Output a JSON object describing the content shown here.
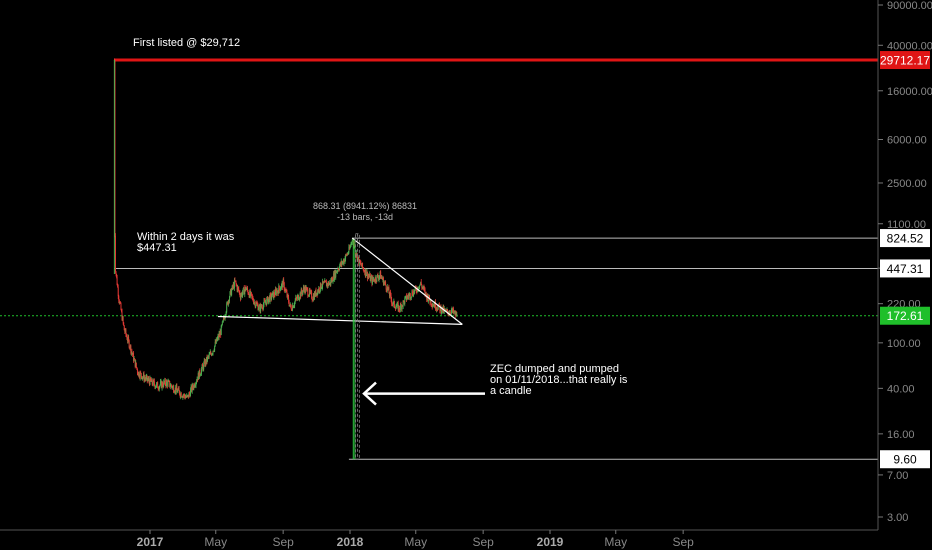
{
  "chart_data": {
    "type": "candlestick",
    "y_scale": "log",
    "ylim": [
      2.6,
      120000
    ],
    "x_ticks": [
      "2017",
      "May",
      "Sep",
      "2018",
      "May",
      "Sep",
      "2019",
      "May",
      "Sep"
    ],
    "x_tick_dates": [
      "2017-01-01",
      "2017-05-01",
      "2017-09-01",
      "2018-01-01",
      "2018-05-01",
      "2018-09-01",
      "2019-01-01",
      "2019-05-01",
      "2019-09-01"
    ],
    "y_ticks": [
      "90000.00",
      "40000.00",
      "16000.00",
      "6000.00",
      "2500.00",
      "1100.00",
      "450.00",
      "220.00",
      "100.00",
      "40.00",
      "16.00",
      "7.00",
      "3.00"
    ],
    "y_tick_values": [
      90000,
      40000,
      16000,
      6000,
      2500,
      1100,
      450,
      220,
      100,
      40,
      16,
      7,
      3
    ],
    "price_labels": [
      {
        "text": "29712.17",
        "value": 29712.17,
        "color": "#e01515",
        "text_color": "#ffffff"
      },
      {
        "text": "824.52",
        "value": 824.52,
        "color": "#ffffff",
        "text_color": "#000000"
      },
      {
        "text": "447.31",
        "value": 447.31,
        "color": "#ffffff",
        "text_color": "#000000"
      },
      {
        "text": "172.61",
        "value": 172.61,
        "color": "#1fbf2a",
        "text_color": "#ffffff"
      },
      {
        "text": "9.60",
        "value": 9.6,
        "color": "#ffffff",
        "text_color": "#000000"
      }
    ],
    "horizontal_lines": [
      {
        "value": 29712.17,
        "color": "#e01515",
        "style": "solid",
        "from": "2016-10-28",
        "to": "end"
      },
      {
        "value": 824.52,
        "color": "#bbbbbb",
        "style": "solid",
        "from": "2018-01-05",
        "to": "end"
      },
      {
        "value": 447.31,
        "color": "#bbbbbb",
        "style": "solid",
        "from": "2016-10-28",
        "to": "end"
      },
      {
        "value": 172.61,
        "color": "#1fbf2a",
        "style": "dotted",
        "from": "start",
        "to": "end"
      },
      {
        "value": 9.6,
        "color": "#bbbbbb",
        "style": "solid",
        "from": "2017-12-30",
        "to": "end"
      }
    ],
    "annotations": {
      "first_listed": "First listed @ $29,712",
      "within_line1": "Within 2 days it was",
      "within_line2": "$447.31",
      "measure_line1": "868.31 (8941.12%) 86831",
      "measure_line2": "-13 bars, -13d",
      "zec_line1": "ZEC dumped and pumped",
      "zec_line2": "on 01/11/2018...that really is",
      "zec_line3": "a candle"
    },
    "series": [
      {
        "date": "2016-10-28",
        "value": 29712
      },
      {
        "date": "2016-10-29",
        "value": 900
      },
      {
        "date": "2016-10-30",
        "value": 447
      },
      {
        "date": "2016-11-05",
        "value": 250
      },
      {
        "date": "2016-11-15",
        "value": 130
      },
      {
        "date": "2016-11-25",
        "value": 95
      },
      {
        "date": "2016-12-10",
        "value": 55
      },
      {
        "date": "2016-12-25",
        "value": 48
      },
      {
        "date": "2017-01-15",
        "value": 42
      },
      {
        "date": "2017-02-01",
        "value": 45
      },
      {
        "date": "2017-02-20",
        "value": 38
      },
      {
        "date": "2017-03-10",
        "value": 33
      },
      {
        "date": "2017-03-25",
        "value": 46
      },
      {
        "date": "2017-04-10",
        "value": 65
      },
      {
        "date": "2017-04-25",
        "value": 85
      },
      {
        "date": "2017-05-10",
        "value": 125
      },
      {
        "date": "2017-05-25",
        "value": 250
      },
      {
        "date": "2017-06-05",
        "value": 340
      },
      {
        "date": "2017-06-15",
        "value": 260
      },
      {
        "date": "2017-06-25",
        "value": 300
      },
      {
        "date": "2017-07-10",
        "value": 230
      },
      {
        "date": "2017-07-20",
        "value": 200
      },
      {
        "date": "2017-08-05",
        "value": 240
      },
      {
        "date": "2017-08-20",
        "value": 280
      },
      {
        "date": "2017-09-01",
        "value": 330
      },
      {
        "date": "2017-09-15",
        "value": 200
      },
      {
        "date": "2017-09-25",
        "value": 240
      },
      {
        "date": "2017-10-10",
        "value": 300
      },
      {
        "date": "2017-10-25",
        "value": 250
      },
      {
        "date": "2017-11-10",
        "value": 320
      },
      {
        "date": "2017-11-25",
        "value": 330
      },
      {
        "date": "2017-12-10",
        "value": 450
      },
      {
        "date": "2017-12-20",
        "value": 520
      },
      {
        "date": "2017-12-31",
        "value": 650
      },
      {
        "date": "2018-01-05",
        "value": 825
      },
      {
        "date": "2018-01-10",
        "value": 650
      },
      {
        "date": "2018-01-18",
        "value": 500
      },
      {
        "date": "2018-02-01",
        "value": 400
      },
      {
        "date": "2018-02-10",
        "value": 350
      },
      {
        "date": "2018-02-25",
        "value": 390
      },
      {
        "date": "2018-03-10",
        "value": 300
      },
      {
        "date": "2018-03-20",
        "value": 220
      },
      {
        "date": "2018-04-01",
        "value": 200
      },
      {
        "date": "2018-04-15",
        "value": 250
      },
      {
        "date": "2018-05-01",
        "value": 290
      },
      {
        "date": "2018-05-10",
        "value": 330
      },
      {
        "date": "2018-05-20",
        "value": 260
      },
      {
        "date": "2018-06-01",
        "value": 220
      },
      {
        "date": "2018-06-15",
        "value": 200
      },
      {
        "date": "2018-06-25",
        "value": 185
      },
      {
        "date": "2018-07-05",
        "value": 190
      },
      {
        "date": "2018-07-15",
        "value": 172
      }
    ]
  }
}
